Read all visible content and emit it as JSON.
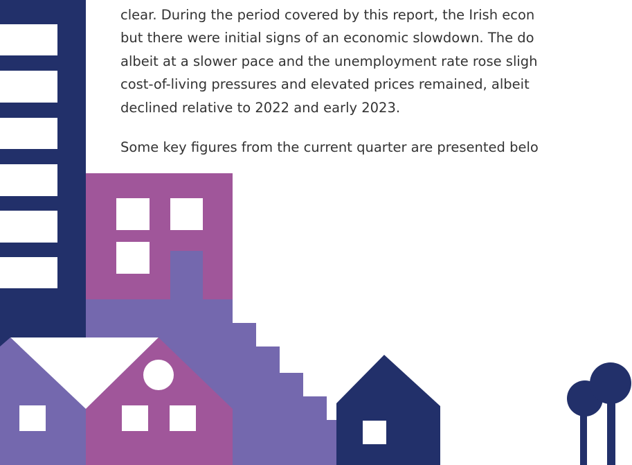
{
  "paragraphs": [
    {
      "lines": [
        "clear. During the period covered by this report, the Irish econ",
        "but there were initial signs of an economic slowdown. The do",
        "albeit at a slower pace and the unemployment rate rose sligh",
        "cost-of-living pressures and elevated prices remained, albeit",
        "declined relative to 2022 and early 2023."
      ]
    },
    {
      "lines": [
        "Some key figures from the current quarter are presented belo"
      ]
    }
  ]
}
